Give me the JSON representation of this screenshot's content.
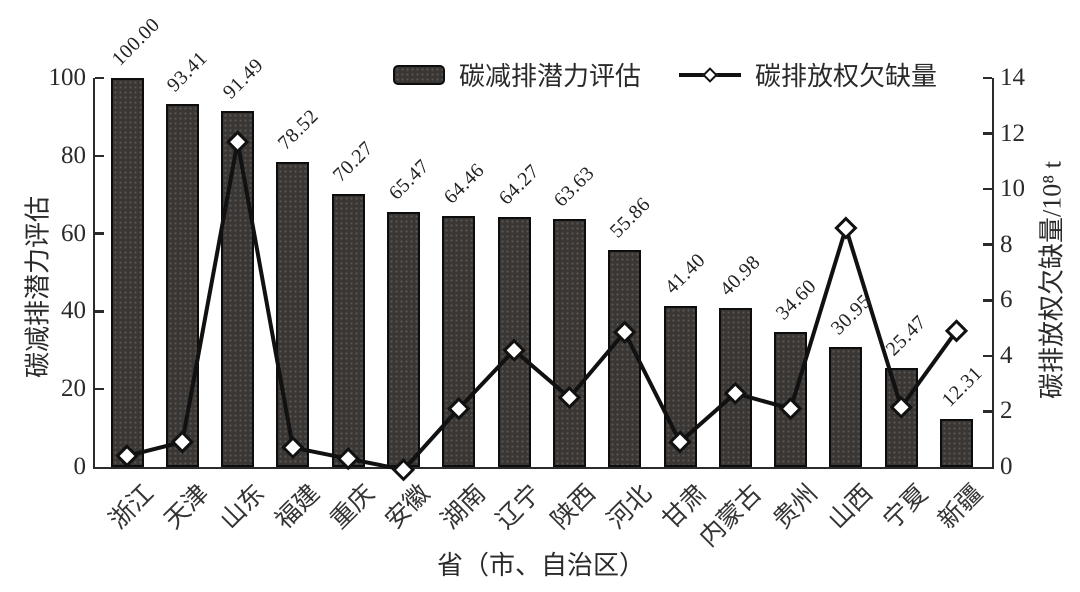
{
  "chart_data": {
    "type": "bar",
    "title": "",
    "categories": [
      "浙江",
      "天津",
      "山东",
      "福建",
      "重庆",
      "安徽",
      "湖南",
      "辽宁",
      "陕西",
      "河北",
      "甘肃",
      "内蒙古",
      "贵州",
      "山西",
      "宁夏",
      "新疆"
    ],
    "series": [
      {
        "name": "碳减排潜力评估",
        "type": "bar",
        "axis": "left",
        "values": [
          100.0,
          93.41,
          91.49,
          78.52,
          70.27,
          65.47,
          64.46,
          64.27,
          63.63,
          55.86,
          41.4,
          40.98,
          34.6,
          30.95,
          25.47,
          12.31
        ],
        "labels": [
          "100.00",
          "93.41",
          "91.49",
          "78.52",
          "70.27",
          "65.47",
          "64.46",
          "64.27",
          "63.63",
          "55.86",
          "41.40",
          "40.98",
          "34.60",
          "30.95",
          "25.47",
          "12.31"
        ]
      },
      {
        "name": "碳排放权欠缺量",
        "type": "line",
        "axis": "right",
        "values": [
          0.4,
          0.9,
          11.7,
          0.7,
          0.3,
          -0.1,
          2.1,
          4.2,
          2.5,
          4.85,
          0.9,
          2.65,
          2.1,
          8.6,
          2.15,
          4.9
        ]
      }
    ],
    "xlabel": "省（市、自治区）",
    "ylabel_left": "碳减排潜力评估",
    "ylabel_right": "碳排放权欠缺量/10⁸ t",
    "left_ticks": [
      0,
      20,
      40,
      60,
      80,
      100
    ],
    "right_ticks": [
      0,
      2,
      4,
      6,
      8,
      10,
      12,
      14
    ],
    "ylim_left": [
      0,
      100
    ],
    "ylim_right": [
      0,
      14
    ],
    "grid": "off",
    "legend_position": "top-center",
    "colors": {
      "bar_fill": "#3a3633",
      "bar_border": "#0d0d0d",
      "line": "#111111",
      "marker_fill": "#ffffff",
      "marker_border": "#111111",
      "text": "#2a2a2a",
      "background": "#ffffff"
    }
  }
}
